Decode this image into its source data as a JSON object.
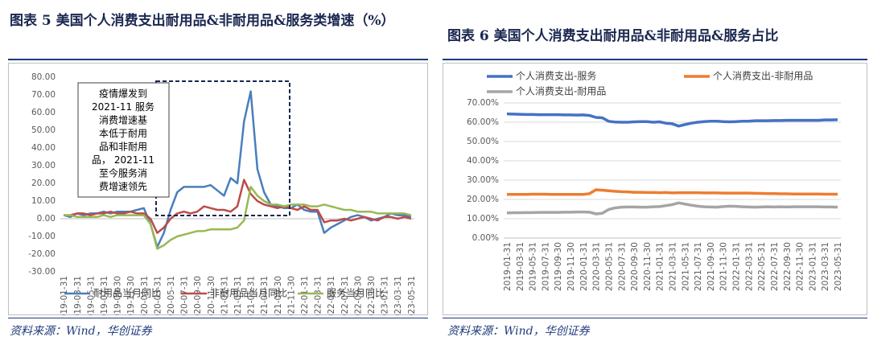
{
  "chart_data": [
    {
      "type": "line",
      "title": "图表 5   美国个人消费支出耐用品&非耐用品&服务类增速（%）",
      "categories": [
        "2019-01-31",
        null,
        "2019-03-31",
        null,
        "2019-05-31",
        null,
        "2019-07-31",
        null,
        "2019-09-30",
        null,
        "2019-11-30",
        null,
        "2020-01-31",
        null,
        "2020-03-31",
        null,
        "2020-05-31",
        null,
        "2020-07-31",
        null,
        "2020-09-30",
        null,
        "2020-11-30",
        null,
        "2021-01-31",
        null,
        "2021-03-31",
        null,
        "2021-05-31",
        null,
        "2021-07-31",
        null,
        "2021-09-30",
        null,
        "2021-11-30",
        null,
        "2022-01-31",
        null,
        "2022-03-31",
        null,
        "2022-05-31",
        null,
        "2022-07-31",
        null,
        "2022-09-30",
        null,
        "2022-11-30",
        null,
        "2023-01-31",
        null,
        "2023-03-31",
        null,
        "2023-05-31"
      ],
      "series": [
        {
          "name": "耐用品当月同比",
          "color": "#4a7ebb",
          "values": [
            2,
            1,
            3,
            2,
            3,
            3,
            4,
            3,
            4,
            4,
            4,
            5,
            6,
            -3,
            -16,
            -8,
            5,
            15,
            18,
            18,
            18,
            18,
            19,
            16,
            13,
            23,
            20,
            55,
            72,
            28,
            15,
            8,
            7,
            6,
            6,
            8,
            5,
            4,
            4,
            -8,
            -5,
            -3,
            -1,
            1,
            2,
            1,
            -1,
            0,
            1,
            3,
            2,
            2,
            1
          ]
        },
        {
          "name": "非耐用品当月同比",
          "color": "#be4b48",
          "values": [
            2,
            2,
            3,
            3,
            2,
            3,
            3,
            4,
            3,
            3,
            4,
            3,
            3,
            0,
            -8,
            -5,
            0,
            3,
            4,
            3,
            4,
            7,
            6,
            5,
            5,
            4,
            7,
            22,
            14,
            10,
            8,
            7,
            6,
            7,
            6,
            5,
            7,
            5,
            5,
            -2,
            -1,
            -1,
            0,
            -1,
            0,
            1,
            0,
            -1,
            1,
            1,
            0,
            1,
            0
          ]
        },
        {
          "name": "服务当月同比",
          "color": "#98b954",
          "values": [
            2,
            2,
            1,
            1,
            1,
            1,
            2,
            1,
            2,
            2,
            2,
            2,
            2,
            -3,
            -17,
            -15,
            -12,
            -10,
            -9,
            -8,
            -7,
            -7,
            -6,
            -6,
            -6,
            -6,
            -5,
            -1,
            18,
            13,
            10,
            8,
            8,
            7,
            8,
            8,
            8,
            7,
            7,
            8,
            7,
            6,
            5,
            5,
            4,
            4,
            4,
            3,
            3,
            3,
            3,
            3,
            2
          ]
        }
      ],
      "ylim": [
        -30,
        80
      ],
      "yticks": [
        {
          "value": -30,
          "label": "-30.00"
        },
        {
          "value": -20,
          "label": "-20.00"
        },
        {
          "value": -10,
          "label": "-10.00"
        },
        {
          "value": 0,
          "label": "0.00"
        },
        {
          "value": 10,
          "label": "10.00"
        },
        {
          "value": 20,
          "label": "20.00"
        },
        {
          "value": 30,
          "label": "30.00"
        },
        {
          "value": 40,
          "label": "40.00"
        },
        {
          "value": 50,
          "label": "50.00"
        },
        {
          "value": 60,
          "label": "60.00"
        },
        {
          "value": 70,
          "label": "70.00"
        },
        {
          "value": 80,
          "label": "80.00"
        }
      ],
      "grid": false,
      "legend": "bottom",
      "annotation": [
        "疫情爆发到",
        "2021-11 服务",
        "消费增速基",
        "本低于耐用",
        "品和非耐用",
        "品， 2021-11",
        "至今服务消",
        "费增速领先"
      ],
      "source": "资料来源：Wind，华创证券"
    },
    {
      "type": "line",
      "title": "图表 6   美国个人消费支出耐用品&非耐用品&服务占比",
      "categories": [
        "2019-01-31",
        null,
        "2019-03-31",
        null,
        "2019-05-31",
        null,
        "2019-07-31",
        null,
        "2019-09-30",
        null,
        "2019-11-30",
        null,
        "2020-01-31",
        null,
        "2020-03-31",
        null,
        "2020-05-31",
        null,
        "2020-07-31",
        null,
        "2020-09-30",
        null,
        "2020-11-30",
        null,
        "2021-01-31",
        null,
        "2021-03-31",
        null,
        "2021-05-31",
        null,
        "2021-07-31",
        null,
        "2021-09-30",
        null,
        "2021-11-30",
        null,
        "2022-01-31",
        null,
        "2022-03-31",
        null,
        "2022-05-31",
        null,
        "2022-07-31",
        null,
        "2022-09-30",
        null,
        "2022-11-30",
        null,
        "2023-01-31",
        null,
        "2023-03-31",
        null,
        "2023-05-31"
      ],
      "series": [
        {
          "name": "个人消费支出-服务",
          "color": "#4472c4",
          "values": [
            64.3,
            64.2,
            64.1,
            64.0,
            64.0,
            63.9,
            63.9,
            63.9,
            63.9,
            63.8,
            63.8,
            63.7,
            63.8,
            63.5,
            62.5,
            62.3,
            60.5,
            60.1,
            60.0,
            60.0,
            60.2,
            60.3,
            60.3,
            60.0,
            60.2,
            59.5,
            59.2,
            58.0,
            58.8,
            59.5,
            60.0,
            60.3,
            60.5,
            60.5,
            60.3,
            60.2,
            60.3,
            60.5,
            60.5,
            60.8,
            60.8,
            60.8,
            60.9,
            60.9,
            61.0,
            61.0,
            61.0,
            61.0,
            61.0,
            61.0,
            61.2,
            61.2,
            61.3
          ]
        },
        {
          "name": "个人消费支出-非耐用品",
          "color": "#ed7d31",
          "values": [
            22.6,
            22.6,
            22.6,
            22.6,
            22.7,
            22.7,
            22.7,
            22.6,
            22.6,
            22.6,
            22.6,
            22.6,
            22.6,
            23.0,
            25.0,
            24.8,
            24.5,
            24.2,
            24.0,
            23.9,
            23.7,
            23.7,
            23.6,
            23.6,
            23.5,
            23.6,
            23.4,
            23.5,
            23.5,
            23.5,
            23.5,
            23.4,
            23.4,
            23.4,
            23.3,
            23.3,
            23.3,
            23.3,
            23.3,
            23.2,
            23.1,
            23.0,
            23.0,
            22.9,
            22.9,
            22.8,
            22.8,
            22.8,
            22.8,
            22.8,
            22.7,
            22.7,
            22.7
          ]
        },
        {
          "name": "个人消费支出-耐用品",
          "color": "#a5a5a5",
          "values": [
            13.0,
            13.1,
            13.1,
            13.2,
            13.2,
            13.3,
            13.3,
            13.3,
            13.3,
            13.4,
            13.4,
            13.5,
            13.5,
            13.4,
            12.5,
            12.8,
            14.8,
            15.6,
            16.0,
            16.1,
            16.1,
            16.0,
            16.0,
            16.2,
            16.3,
            16.8,
            17.3,
            18.2,
            17.6,
            17.0,
            16.5,
            16.2,
            16.1,
            16.0,
            16.3,
            16.5,
            16.4,
            16.2,
            16.1,
            16.0,
            16.1,
            16.2,
            16.1,
            16.2,
            16.1,
            16.2,
            16.2,
            16.2,
            16.2,
            16.2,
            16.1,
            16.1,
            16.0
          ]
        }
      ],
      "ylim": [
        0,
        70
      ],
      "yticks": [
        {
          "value": 0,
          "label": "0.00%"
        },
        {
          "value": 10,
          "label": "10.00%"
        },
        {
          "value": 20,
          "label": "20.00%"
        },
        {
          "value": 30,
          "label": "30.00%"
        },
        {
          "value": 40,
          "label": "40.00%"
        },
        {
          "value": 50,
          "label": "50.00%"
        },
        {
          "value": 60,
          "label": "60.00%"
        },
        {
          "value": 70,
          "label": "70.00%"
        }
      ],
      "grid": true,
      "legend": "top",
      "source": "资料来源：Wind，华创证券"
    }
  ]
}
